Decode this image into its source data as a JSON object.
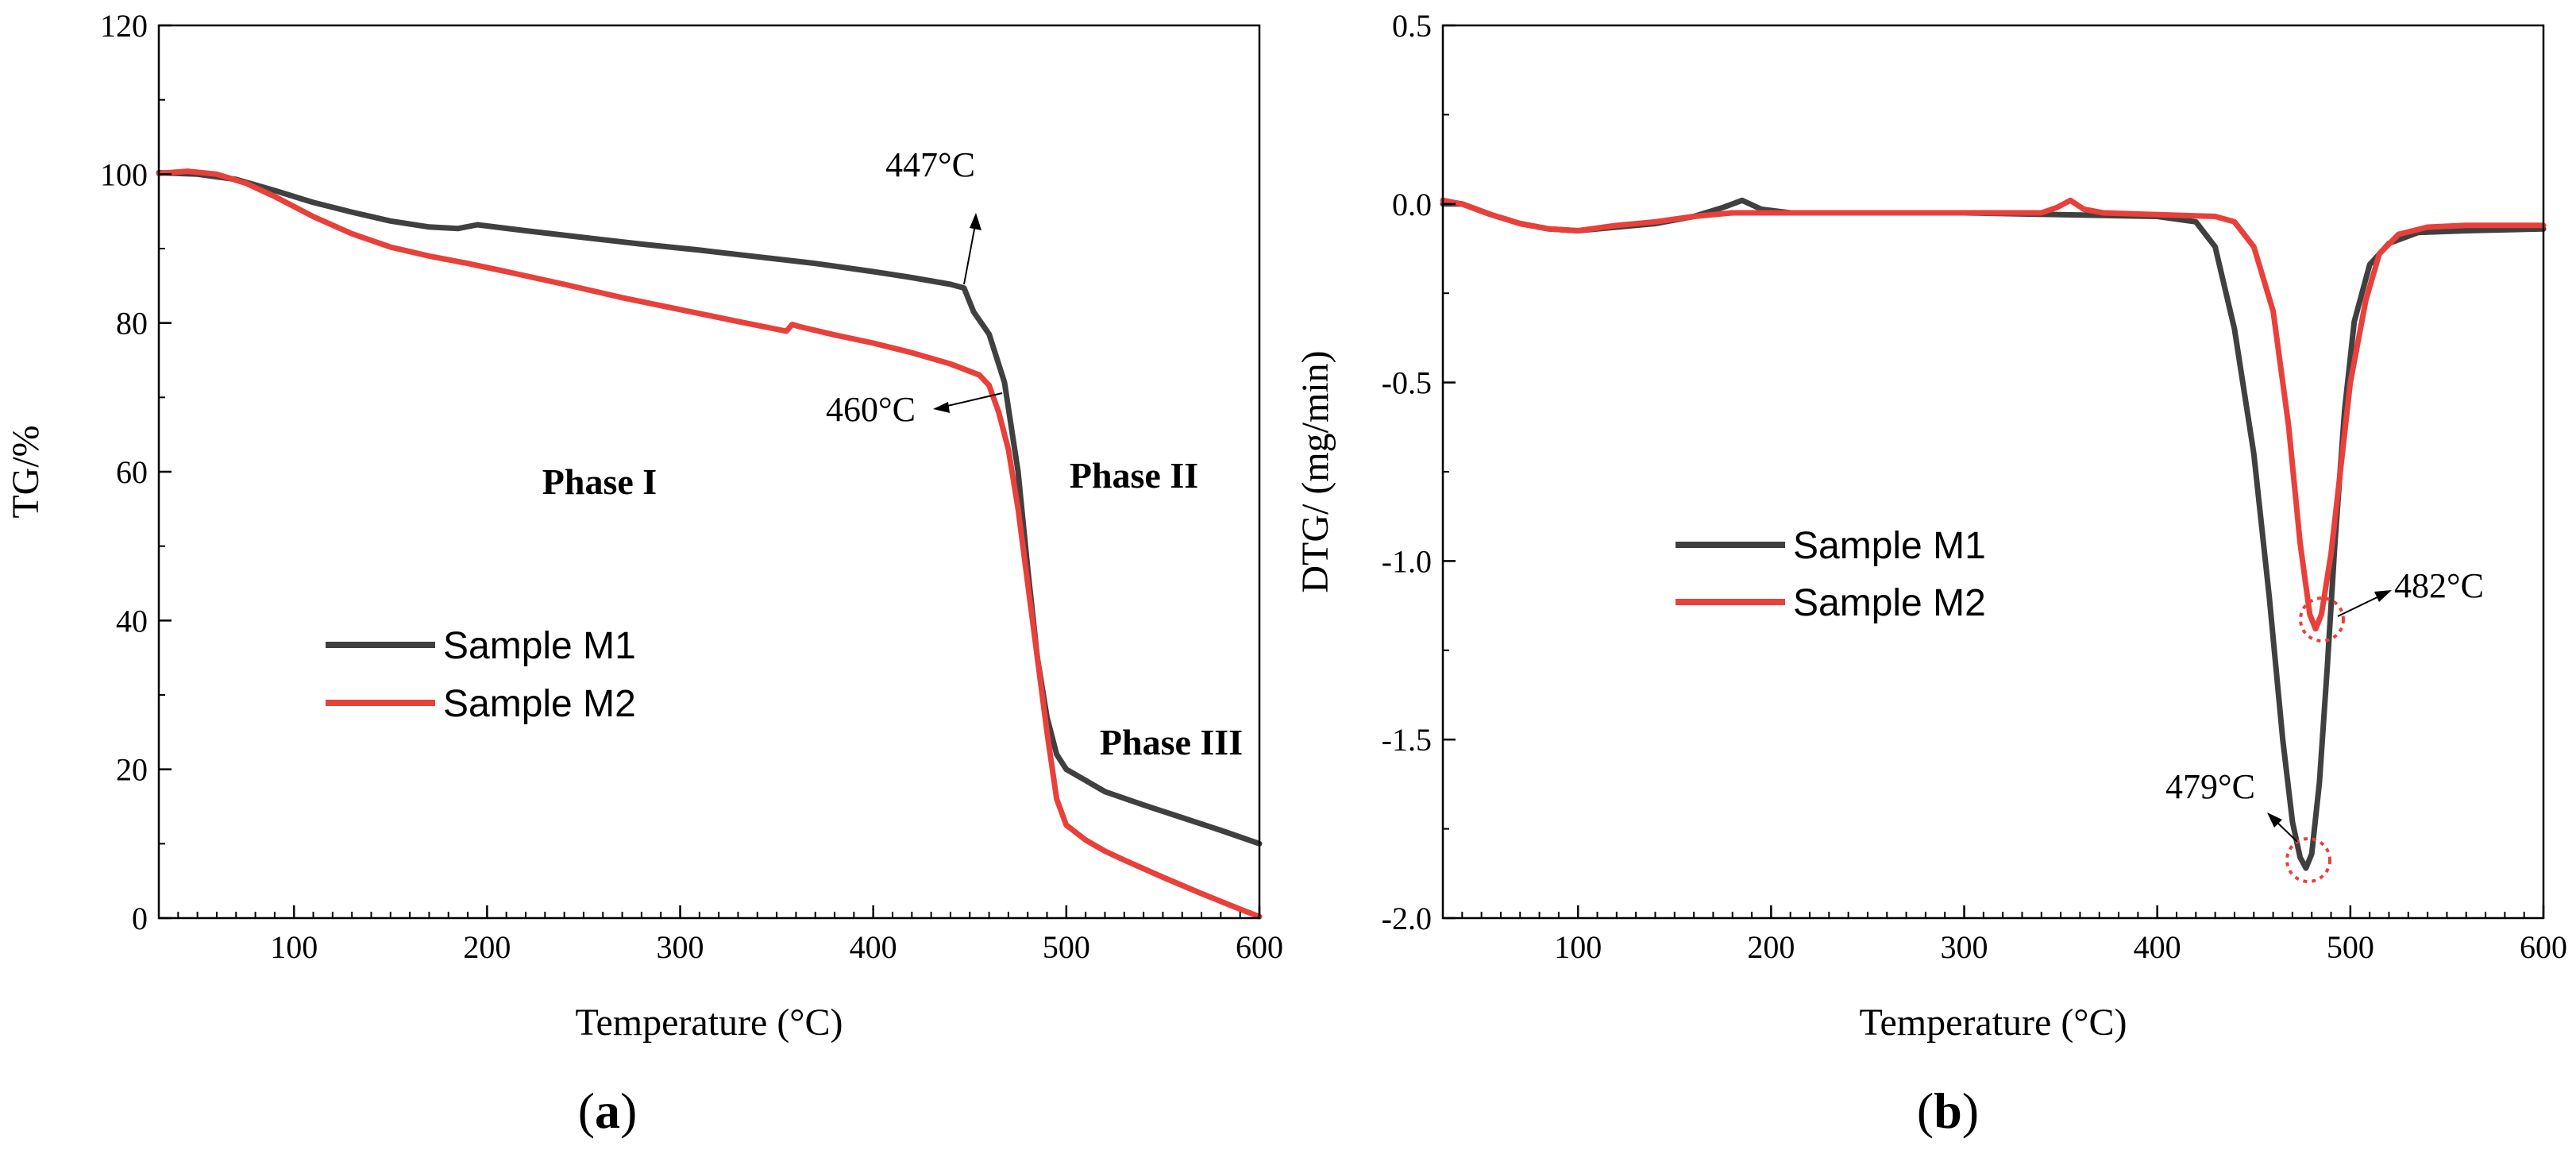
{
  "chart_data": [
    {
      "type": "line",
      "panel_label": "a",
      "xlabel": "Temperature (°C)",
      "ylabel": "TG/%",
      "xlim": [
        30,
        600
      ],
      "ylim": [
        0,
        120
      ],
      "xticks": [
        100,
        200,
        300,
        400,
        500,
        600
      ],
      "yticks": [
        0,
        20,
        40,
        60,
        80,
        100,
        120
      ],
      "grid": false,
      "legend_position": "lower-left",
      "series": [
        {
          "name": "Sample M1",
          "color": "#404040",
          "x": [
            30,
            50,
            70,
            90,
            110,
            130,
            150,
            170,
            185,
            195,
            220,
            250,
            280,
            310,
            340,
            370,
            400,
            420,
            440,
            447,
            452,
            460,
            468,
            475,
            480,
            485,
            490,
            495,
            500,
            510,
            520,
            540,
            560,
            580,
            600
          ],
          "y": [
            100.2,
            100.0,
            99.3,
            97.8,
            96.2,
            94.9,
            93.7,
            92.9,
            92.7,
            93.2,
            92.4,
            91.5,
            90.6,
            89.8,
            88.9,
            88.0,
            86.9,
            86.1,
            85.2,
            84.7,
            81.5,
            78.5,
            72.0,
            60.0,
            47.0,
            35.0,
            27.0,
            22.0,
            20.0,
            18.5,
            17.0,
            15.2,
            13.5,
            11.8,
            10.0
          ]
        },
        {
          "name": "Sample M2",
          "color": "#e8403a",
          "x": [
            30,
            45,
            60,
            75,
            90,
            110,
            130,
            150,
            170,
            190,
            210,
            240,
            270,
            300,
            330,
            355,
            358,
            362,
            380,
            400,
            420,
            440,
            455,
            460,
            465,
            470,
            475,
            480,
            485,
            490,
            495,
            500,
            510,
            520,
            530,
            550,
            570,
            590,
            600
          ],
          "y": [
            100.1,
            100.4,
            100.0,
            98.8,
            97.0,
            94.3,
            92.0,
            90.2,
            89.0,
            88.0,
            86.9,
            85.2,
            83.4,
            81.8,
            80.2,
            78.9,
            79.8,
            79.5,
            78.4,
            77.3,
            76.0,
            74.5,
            73.0,
            71.6,
            68.0,
            63.0,
            55.0,
            45.0,
            35.0,
            25.0,
            16.0,
            12.5,
            10.5,
            9.0,
            7.8,
            5.5,
            3.3,
            1.2,
            0.2
          ]
        }
      ],
      "annotations": [
        "447°C",
        "460°C"
      ],
      "region_labels": [
        "Phase I",
        "Phase II",
        "Phase III"
      ]
    },
    {
      "type": "line",
      "panel_label": "b",
      "xlabel": "Temperature (°C)",
      "ylabel": "DTG/ (mg/min)",
      "xlim": [
        30,
        600
      ],
      "ylim": [
        -2.0,
        0.5
      ],
      "xticks": [
        100,
        200,
        300,
        400,
        500,
        600
      ],
      "yticks": [
        -2.0,
        -1.5,
        -1.0,
        -0.5,
        0.0,
        0.5
      ],
      "grid": false,
      "legend_position": "middle-left",
      "series": [
        {
          "name": "Sample M1",
          "color": "#404040",
          "x": [
            30,
            40,
            55,
            70,
            85,
            100,
            120,
            140,
            160,
            175,
            185,
            195,
            210,
            250,
            300,
            350,
            400,
            420,
            430,
            440,
            450,
            458,
            465,
            470,
            474,
            477,
            480,
            484,
            488,
            492,
            497,
            502,
            510,
            520,
            535,
            560,
            600
          ],
          "y": [
            0.0,
            0.0,
            -0.03,
            -0.055,
            -0.07,
            -0.075,
            -0.065,
            -0.055,
            -0.035,
            -0.01,
            0.01,
            -0.015,
            -0.025,
            -0.025,
            -0.025,
            -0.03,
            -0.035,
            -0.05,
            -0.12,
            -0.35,
            -0.7,
            -1.1,
            -1.5,
            -1.73,
            -1.83,
            -1.86,
            -1.82,
            -1.62,
            -1.3,
            -0.95,
            -0.58,
            -0.33,
            -0.17,
            -0.11,
            -0.08,
            -0.075,
            -0.07
          ]
        },
        {
          "name": "Sample M2",
          "color": "#e8403a",
          "x": [
            30,
            40,
            55,
            70,
            85,
            100,
            120,
            140,
            160,
            180,
            200,
            250,
            300,
            340,
            348,
            355,
            362,
            372,
            400,
            430,
            440,
            450,
            460,
            468,
            474,
            479,
            482,
            485,
            490,
            495,
            500,
            508,
            515,
            525,
            540,
            560,
            600
          ],
          "y": [
            0.01,
            0.0,
            -0.03,
            -0.055,
            -0.07,
            -0.075,
            -0.06,
            -0.05,
            -0.035,
            -0.025,
            -0.025,
            -0.025,
            -0.025,
            -0.025,
            -0.01,
            0.01,
            -0.015,
            -0.025,
            -0.03,
            -0.035,
            -0.05,
            -0.12,
            -0.3,
            -0.62,
            -0.95,
            -1.15,
            -1.19,
            -1.15,
            -0.98,
            -0.74,
            -0.5,
            -0.27,
            -0.14,
            -0.085,
            -0.065,
            -0.06,
            -0.06
          ]
        }
      ],
      "annotations": [
        "482°C",
        "479°C"
      ]
    }
  ]
}
